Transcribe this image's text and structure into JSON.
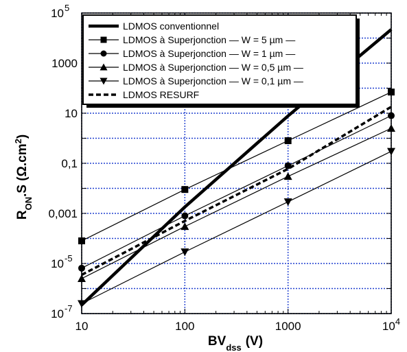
{
  "chart_data": {
    "type": "line",
    "xscale": "log",
    "yscale": "log",
    "xlim": [
      10,
      10000
    ],
    "ylim": [
      1e-07,
      100000
    ],
    "xlabel": {
      "main": "BV",
      "sub": "dss",
      "unit": "(V)"
    },
    "ylabel": {
      "main": "R",
      "sub": "ON",
      "mid": ".S (Ω.cm",
      "sup": "2",
      "end": ")"
    },
    "xticks": [
      {
        "value": 10,
        "base": "10",
        "exp": ""
      },
      {
        "value": 100,
        "base": "100",
        "exp": ""
      },
      {
        "value": 1000,
        "base": "1000",
        "exp": ""
      },
      {
        "value": 10000,
        "base": "10",
        "exp": "4"
      }
    ],
    "yticks": [
      {
        "value": 1e-07,
        "base": "10",
        "exp": "-7"
      },
      {
        "value": 1e-05,
        "base": "10",
        "exp": "-5"
      },
      {
        "value": 0.001,
        "base": "0,001",
        "exp": ""
      },
      {
        "value": 0.1,
        "base": "0,1",
        "exp": ""
      },
      {
        "value": 10,
        "base": "10",
        "exp": ""
      },
      {
        "value": 1000,
        "base": "1000",
        "exp": ""
      },
      {
        "value": 100000,
        "base": "10",
        "exp": "5"
      }
    ],
    "grid": true,
    "legend_position": "top-left",
    "colors": {
      "series": "#000000",
      "grid": "#1f3fcf",
      "axes": "#000000"
    },
    "series": [
      {
        "name": "LDMOS conventionnel",
        "marker": "none",
        "style": "thick",
        "x": [
          10,
          100,
          1000,
          10000
        ],
        "y": [
          2.2e-07,
          0.0018,
          7.8,
          22000
        ]
      },
      {
        "name": "LDMOS à Superjonction — W = 5 µm —",
        "marker": "square",
        "style": "thin",
        "x": [
          10,
          100,
          1000,
          10000
        ],
        "y": [
          8e-05,
          0.009,
          0.8,
          70
        ]
      },
      {
        "name": "LDMOS à Superjonction — W = 1 µm —",
        "marker": "circle",
        "style": "thin",
        "x": [
          10,
          100,
          1000,
          10000
        ],
        "y": [
          6.5e-06,
          0.0008,
          0.08,
          8
        ]
      },
      {
        "name": "LDMOS à Superjonction — W = 0,5 µm —",
        "marker": "triangle-up",
        "style": "thin",
        "x": [
          10,
          100,
          1000,
          10000
        ],
        "y": [
          2.5e-06,
          0.0003,
          0.03,
          2.5
        ]
      },
      {
        "name": "LDMOS à Superjonction — W = 0,1 µm —",
        "marker": "triangle-down",
        "style": "thin",
        "x": [
          10,
          100,
          1000,
          10000
        ],
        "y": [
          2.5e-07,
          2.9e-05,
          0.0029,
          0.3
        ]
      },
      {
        "name": "LDMOS RESURF",
        "marker": "none",
        "style": "dashed",
        "x": [
          10,
          100,
          1000,
          10000
        ],
        "y": [
          3.5e-06,
          0.0005,
          0.06,
          18
        ]
      }
    ]
  }
}
